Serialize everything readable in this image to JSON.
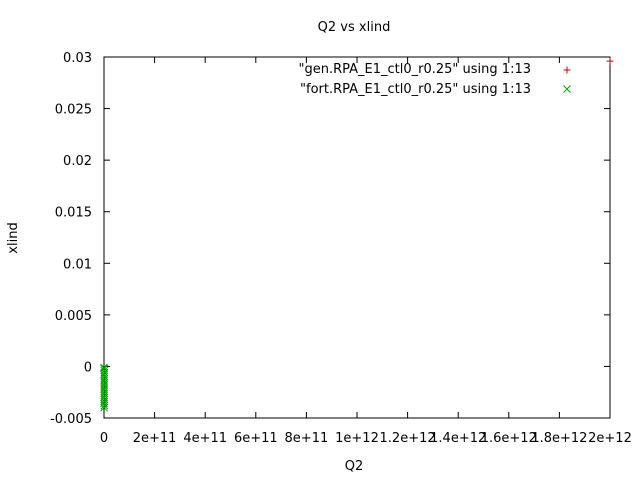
{
  "chart_data": {
    "type": "scatter",
    "title": "Q2 vs xlind",
    "xlabel": "Q2",
    "ylabel": "xlind",
    "xlim": [
      0,
      2000000000000
    ],
    "ylim": [
      -0.005,
      0.03
    ],
    "xticks": [
      {
        "value": 0,
        "label": "0"
      },
      {
        "value": 200000000000,
        "label": "2e+11"
      },
      {
        "value": 400000000000,
        "label": "4e+11"
      },
      {
        "value": 600000000000,
        "label": "6e+11"
      },
      {
        "value": 800000000000,
        "label": "8e+11"
      },
      {
        "value": 1000000000000,
        "label": "1e+12"
      },
      {
        "value": 1200000000000,
        "label": "1.2e+12"
      },
      {
        "value": 1400000000000,
        "label": "1.4e+12"
      },
      {
        "value": 1600000000000,
        "label": "1.6e+12"
      },
      {
        "value": 1800000000000,
        "label": "1.8e+12"
      },
      {
        "value": 2000000000000,
        "label": "2e+12"
      }
    ],
    "yticks": [
      {
        "value": -0.005,
        "label": "-0.005"
      },
      {
        "value": 0,
        "label": "0"
      },
      {
        "value": 0.005,
        "label": "0.005"
      },
      {
        "value": 0.01,
        "label": "0.01"
      },
      {
        "value": 0.015,
        "label": "0.015"
      },
      {
        "value": 0.02,
        "label": "0.02"
      },
      {
        "value": 0.025,
        "label": "0.025"
      },
      {
        "value": 0.03,
        "label": "0.03"
      }
    ],
    "grid": false,
    "legend_position": "top-right",
    "series": [
      {
        "name": "\"gen.RPA_E1_ctl0_r0.25\" using 1:13",
        "marker": "plus",
        "color": "#cc0000",
        "points": [
          {
            "x": 2000000000000,
            "y": 0.0296
          }
        ]
      },
      {
        "name": "\"fort.RPA_E1_ctl0_r0.25\" using 1:13",
        "marker": "cross",
        "color": "#00a000",
        "points": [
          {
            "x": 0,
            "y": -0.0001
          },
          {
            "x": 500000000,
            "y": -0.0002
          },
          {
            "x": 1000000000,
            "y": -0.0004
          },
          {
            "x": 1500000000,
            "y": -0.0006
          },
          {
            "x": 0,
            "y": -0.0008
          },
          {
            "x": 800000000,
            "y": -0.001
          },
          {
            "x": 1200000000,
            "y": -0.0012
          },
          {
            "x": 300000000,
            "y": -0.0014
          },
          {
            "x": 1800000000,
            "y": -0.0016
          },
          {
            "x": 600000000,
            "y": -0.0018
          },
          {
            "x": 1000000000,
            "y": -0.002
          },
          {
            "x": 200000000,
            "y": -0.0022
          },
          {
            "x": 1400000000,
            "y": -0.0024
          },
          {
            "x": 700000000,
            "y": -0.0026
          },
          {
            "x": 1100000000,
            "y": -0.0028
          },
          {
            "x": 400000000,
            "y": -0.003
          },
          {
            "x": 1600000000,
            "y": -0.0032
          },
          {
            "x": 900000000,
            "y": -0.0034
          },
          {
            "x": 100000000,
            "y": -0.0036
          },
          {
            "x": 1300000000,
            "y": -0.0038
          },
          {
            "x": 500000000,
            "y": -0.004
          }
        ]
      }
    ]
  }
}
